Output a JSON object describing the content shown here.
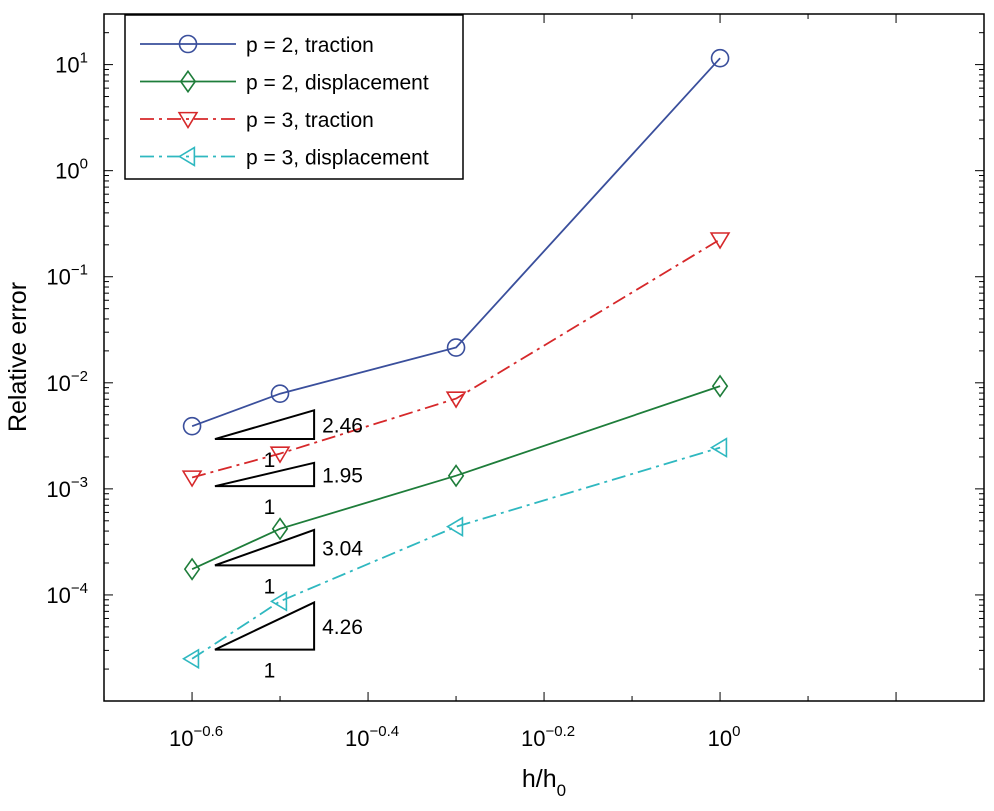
{
  "chart_data": {
    "type": "line",
    "xlabel": "h/h",
    "xlabel_sub": "0",
    "ylabel": "Relative error",
    "x_scale": "log",
    "y_scale": "log",
    "xlim": [
      0.1995,
      1.995
    ],
    "ylim": [
      1e-05,
      30
    ],
    "x_ticks": [
      {
        "value": 0.2512,
        "base": "10",
        "exp": "−0.6"
      },
      {
        "value": 0.3981,
        "base": "10",
        "exp": "−0.4"
      },
      {
        "value": 0.631,
        "base": "10",
        "exp": "−0.2"
      },
      {
        "value": 1.0,
        "base": "10",
        "exp": "0"
      }
    ],
    "y_ticks": [
      {
        "value": 0.0001,
        "base": "10",
        "exp": "−4"
      },
      {
        "value": 0.001,
        "base": "10",
        "exp": "−3"
      },
      {
        "value": 0.01,
        "base": "10",
        "exp": "−2"
      },
      {
        "value": 0.1,
        "base": "10",
        "exp": "−1"
      },
      {
        "value": 1,
        "base": "10",
        "exp": "0"
      },
      {
        "value": 10,
        "base": "10",
        "exp": "1"
      }
    ],
    "grid": false,
    "legend_position": "top-left",
    "series": [
      {
        "name": "p = 2, traction",
        "color": "#3a4f9c",
        "dash": "solid",
        "marker": "circle",
        "x": [
          0.2512,
          0.3162,
          0.5012,
          1.0
        ],
        "y": [
          0.0039,
          0.0079,
          0.0215,
          11.5
        ]
      },
      {
        "name": "p = 2, displacement",
        "color": "#1e7d3a",
        "dash": "solid",
        "marker": "diamond",
        "x": [
          0.2512,
          0.3162,
          0.5012,
          1.0
        ],
        "y": [
          0.000175,
          0.00042,
          0.00133,
          0.0093
        ]
      },
      {
        "name": "p = 3, traction",
        "color": "#d6282a",
        "dash": "dashdot",
        "marker": "triangle-down",
        "x": [
          0.2512,
          0.3162,
          0.5012,
          1.0
        ],
        "y": [
          0.00128,
          0.00215,
          0.0071,
          0.225
        ]
      },
      {
        "name": "p = 3, displacement",
        "color": "#2fb8c0",
        "dash": "dashdot",
        "marker": "triangle-left",
        "x": [
          0.2512,
          0.3162,
          0.5012,
          1.0
        ],
        "y": [
          2.5e-05,
          8.7e-05,
          0.00044,
          0.00245
        ]
      }
    ],
    "slope_annotations": [
      {
        "label": "2.46",
        "run_label": "1",
        "x0": 0.2667,
        "x1": 0.3457,
        "y0": 0.00295,
        "y1": 0.0055
      },
      {
        "label": "1.95",
        "run_label": "1",
        "x0": 0.2667,
        "x1": 0.3457,
        "y0": 0.00106,
        "y1": 0.00176
      },
      {
        "label": "3.04",
        "run_label": "1",
        "x0": 0.2667,
        "x1": 0.3457,
        "y0": 0.00019,
        "y1": 0.00041
      },
      {
        "label": "4.26",
        "run_label": "1",
        "x0": 0.2667,
        "x1": 0.3457,
        "y0": 3.05e-05,
        "y1": 8.5e-05
      }
    ]
  }
}
